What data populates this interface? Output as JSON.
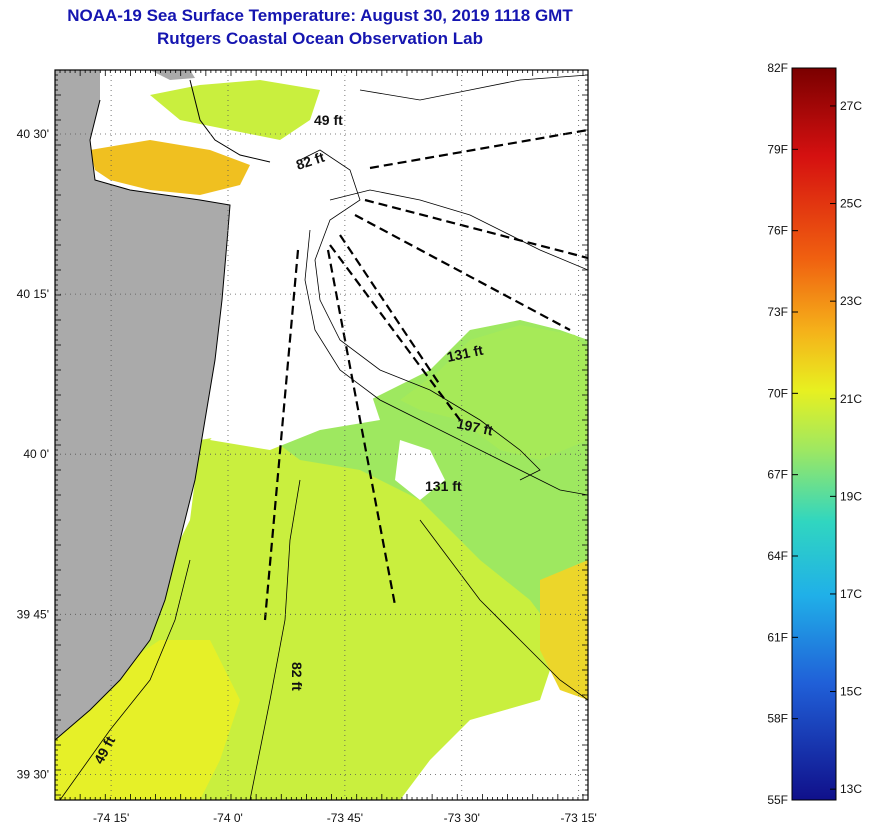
{
  "title": {
    "line1": "NOAA-19 Sea Surface Temperature:  August 30, 2019 1118 GMT",
    "line2": "Rutgers Coastal Ocean Observation Lab"
  },
  "map": {
    "lon_range": [
      -74.37,
      -73.23
    ],
    "lat_range": [
      39.46,
      40.6
    ],
    "lat_ticks": [
      {
        "value": 40.5,
        "label": "40 30'"
      },
      {
        "value": 40.25,
        "label": "40 15'"
      },
      {
        "value": 40.0,
        "label": "40 0'"
      },
      {
        "value": 39.75,
        "label": "39 45'"
      },
      {
        "value": 39.5,
        "label": "39 30'"
      }
    ],
    "lon_ticks": [
      {
        "value": -74.25,
        "label": "-74 15'"
      },
      {
        "value": -74.0,
        "label": "-74 0'"
      },
      {
        "value": -73.75,
        "label": "-73 45'"
      },
      {
        "value": -73.5,
        "label": "-73 30'"
      },
      {
        "value": -73.25,
        "label": "-73 15'"
      }
    ],
    "depth_labels": [
      {
        "text": "49 ft"
      },
      {
        "text": "82 ft"
      },
      {
        "text": "131 ft"
      },
      {
        "text": "197 ft"
      },
      {
        "text": "131 ft"
      },
      {
        "text": "82 ft"
      },
      {
        "text": "49 ft"
      }
    ],
    "colors": {
      "land": "#aaaaaa",
      "cloud": "#ffffff",
      "sst_green": "#9be85f",
      "sst_yellowgreen": "#cdf03a",
      "sst_yellow": "#e8f020",
      "sst_orange": "#f5c018"
    }
  },
  "colorbar": {
    "f_labels": [
      "82F",
      "79F",
      "76F",
      "73F",
      "70F",
      "67F",
      "64F",
      "61F",
      "58F",
      "55F"
    ],
    "c_labels": [
      "27C",
      "25C",
      "23C",
      "21C",
      "19C",
      "17C",
      "15C",
      "13C"
    ],
    "range_f": [
      55,
      82
    ]
  }
}
